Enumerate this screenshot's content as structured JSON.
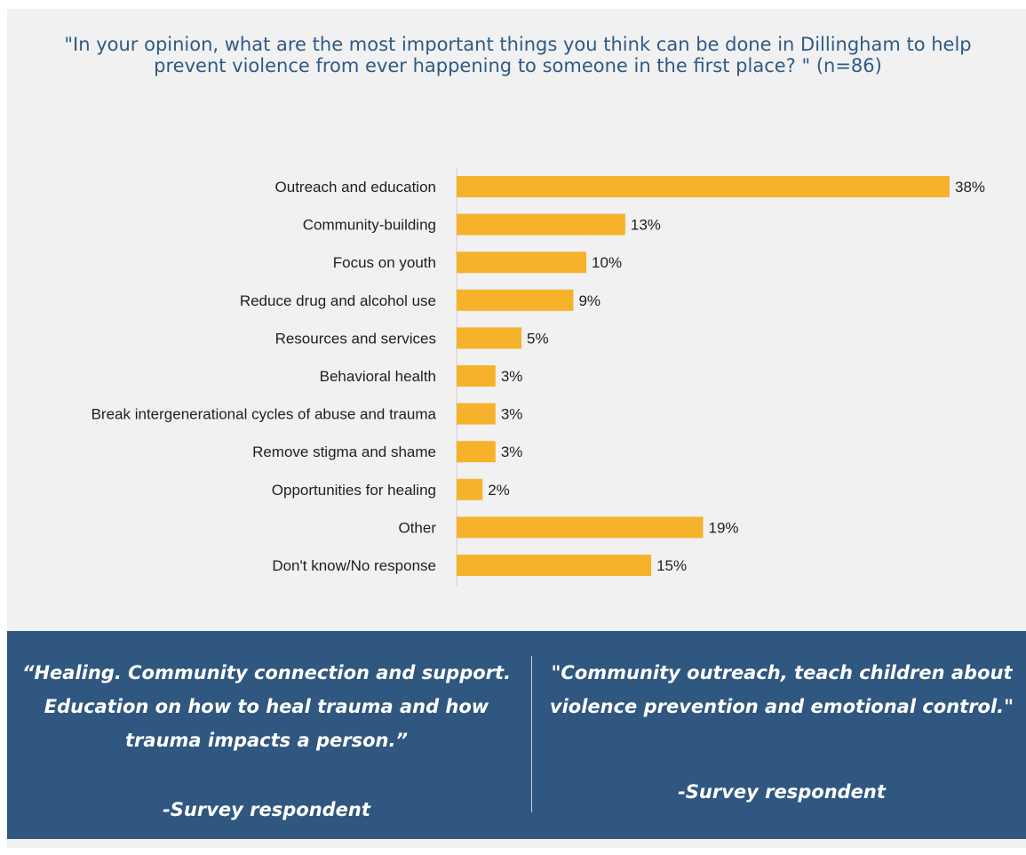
{
  "title": "\"In your opinion, what are the most important things you think can be done in Dillingham to help prevent violence from ever happening to someone in the first place? \" (n=86)",
  "colors": {
    "bar": "#f7b22b",
    "panel_background": "#f1f1f1",
    "title": "#2e5a86",
    "quote_band": "#2f5780",
    "axis": "#d9d9d9"
  },
  "chart_data": {
    "type": "bar",
    "orientation": "horizontal",
    "title": "\"In your opinion, what are the most important things you think can be done in Dillingham to help prevent violence from ever happening to someone in the first place? \" (n=86)",
    "xlabel": "",
    "ylabel": "",
    "xlim": [
      0,
      38
    ],
    "grid": false,
    "legend": "none",
    "categories": [
      "Outreach and education",
      "Community-building",
      "Focus on youth",
      "Reduce drug and alcohol use",
      "Resources and services",
      "Behavioral health",
      "Break intergenerational cycles of abuse and trauma",
      "Remove stigma and shame",
      "Opportunities for healing",
      "Other",
      "Don't know/No response"
    ],
    "values": [
      38,
      13,
      10,
      9,
      5,
      3,
      3,
      3,
      2,
      19,
      15
    ],
    "value_labels": [
      "38%",
      "13%",
      "10%",
      "9%",
      "5%",
      "3%",
      "3%",
      "3%",
      "2%",
      "19%",
      "15%"
    ]
  },
  "quotes": [
    {
      "text": "“Healing. Community connection and support. Education on how to heal trauma and how trauma impacts a person.”",
      "attribution": "-Survey respondent"
    },
    {
      "text": "\"Community outreach, teach children about violence prevention and emotional control.\"",
      "attribution": "-Survey respondent"
    }
  ]
}
